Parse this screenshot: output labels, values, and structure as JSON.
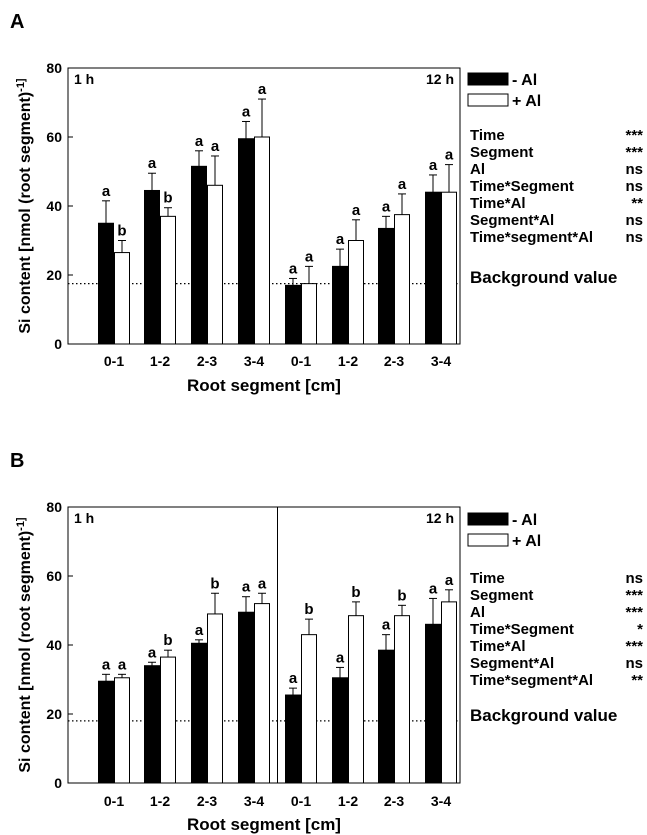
{
  "chart_data": [
    {
      "type": "bar",
      "panel_label": "A",
      "ylabel": "Si content [nmol (root segment)-1]",
      "xlabel": "Root segment [cm]",
      "ylim": [
        0,
        80
      ],
      "yticks": [
        "0",
        "20",
        "40",
        "60",
        "80"
      ],
      "categories": [
        "0-1",
        "1-2",
        "2-3",
        "3-4",
        "0-1",
        "1-2",
        "2-3",
        "3-4"
      ],
      "time_labels": [
        "1 h",
        "12 h"
      ],
      "divider_line": false,
      "series": [
        {
          "name": "- Al",
          "color": "#000000",
          "values": [
            35,
            44.5,
            51.5,
            59.5,
            17,
            22.5,
            33.5,
            44
          ],
          "errors": [
            6.5,
            5,
            4.5,
            5,
            2,
            5,
            3.5,
            5
          ],
          "letters": [
            "a",
            "a",
            "a",
            "a",
            "a",
            "a",
            "a",
            "a"
          ]
        },
        {
          "name": "+ Al",
          "color": "#ffffff",
          "values": [
            26.5,
            37,
            46,
            60,
            17.5,
            30,
            37.5,
            44
          ],
          "errors": [
            3.5,
            2.5,
            8.5,
            11,
            5,
            6,
            6,
            8
          ],
          "letters": [
            "b",
            "b",
            "a",
            "a",
            "a",
            "a",
            "a",
            "a"
          ]
        }
      ],
      "background_value": 17.5,
      "background_label": "Background value",
      "stats": [
        {
          "factor": "Time",
          "sig": "***"
        },
        {
          "factor": "Segment",
          "sig": "***"
        },
        {
          "factor": "Al",
          "sig": "ns"
        },
        {
          "factor": "Time*Segment",
          "sig": "ns"
        },
        {
          "factor": "Time*Al",
          "sig": "**"
        },
        {
          "factor": "Segment*Al",
          "sig": "ns"
        },
        {
          "factor": "Time*segment*Al",
          "sig": "ns"
        }
      ]
    },
    {
      "type": "bar",
      "panel_label": "B",
      "ylabel": "Si content [nmol (root segment)-1]",
      "xlabel": "Root segment [cm]",
      "ylim": [
        0,
        80
      ],
      "yticks": [
        "0",
        "20",
        "40",
        "60",
        "80"
      ],
      "categories": [
        "0-1",
        "1-2",
        "2-3",
        "3-4",
        "0-1",
        "1-2",
        "2-3",
        "3-4"
      ],
      "time_labels": [
        "1 h",
        "12 h"
      ],
      "divider_line": true,
      "series": [
        {
          "name": "- Al",
          "color": "#000000",
          "values": [
            29.5,
            34,
            40.5,
            49.5,
            25.5,
            30.5,
            38.5,
            46
          ],
          "errors": [
            2,
            1,
            1,
            4.5,
            2,
            3,
            4.5,
            7.5
          ],
          "letters": [
            "a",
            "a",
            "a",
            "a",
            "a",
            "a",
            "a",
            "a"
          ]
        },
        {
          "name": "+ Al",
          "color": "#ffffff",
          "values": [
            30.5,
            36.5,
            49,
            52,
            43,
            48.5,
            48.5,
            52.5
          ],
          "errors": [
            1,
            2,
            6,
            3,
            4.5,
            4,
            3,
            3.5
          ],
          "letters": [
            "a",
            "b",
            "b",
            "a",
            "b",
            "b",
            "b",
            "a"
          ]
        }
      ],
      "background_value": 18,
      "background_label": "Background value",
      "stats": [
        {
          "factor": "Time",
          "sig": "ns"
        },
        {
          "factor": "Segment",
          "sig": "***"
        },
        {
          "factor": "Al",
          "sig": "***"
        },
        {
          "factor": "Time*Segment",
          "sig": "*"
        },
        {
          "factor": "Time*Al",
          "sig": "***"
        },
        {
          "factor": "Segment*Al",
          "sig": "ns"
        },
        {
          "factor": "Time*segment*Al",
          "sig": "**"
        }
      ]
    }
  ]
}
